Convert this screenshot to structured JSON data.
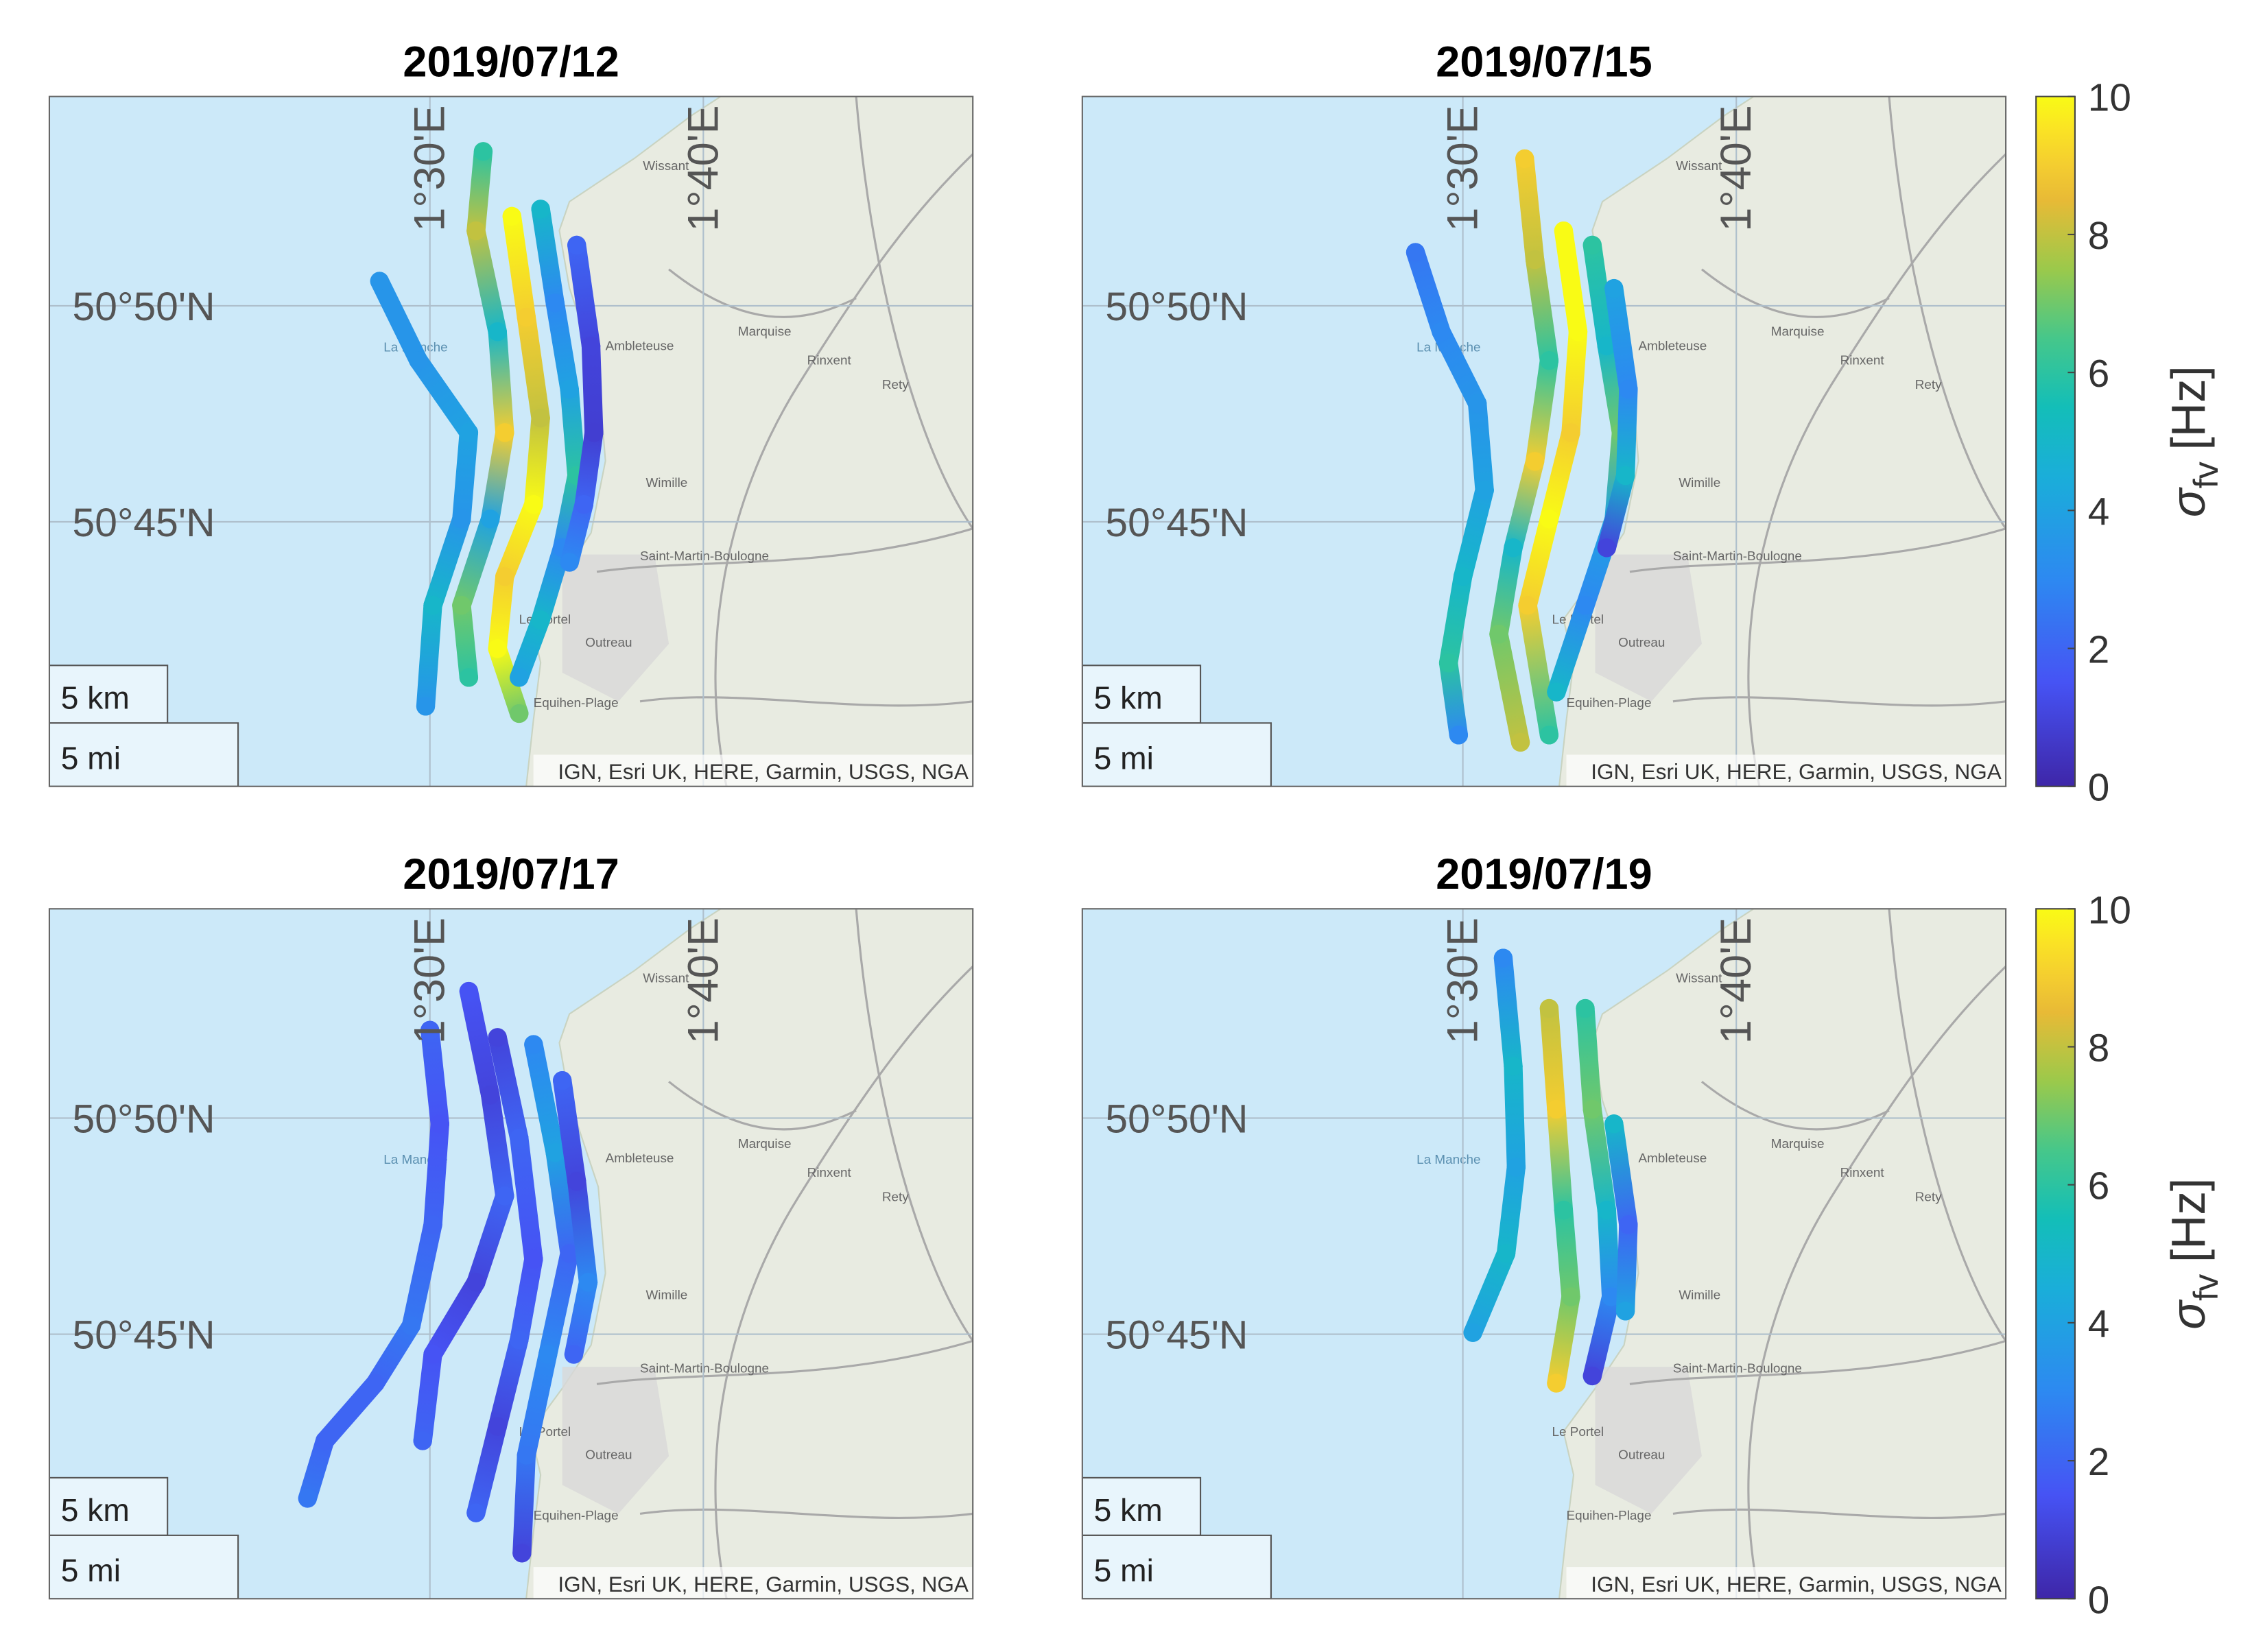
{
  "map": {
    "xlim": [
      1.268,
      1.831
    ],
    "ylim": [
      50.648,
      50.914
    ],
    "lon_ticks": [
      {
        "value": 1.5,
        "label": "1°30'E"
      },
      {
        "value": 1.6667,
        "label": "1°40'E"
      }
    ],
    "lat_ticks": [
      {
        "value": 50.8333,
        "label": "50°50'N"
      },
      {
        "value": 50.75,
        "label": "50°45'N"
      }
    ],
    "scale_bar": [
      "5 km",
      "5 mi"
    ],
    "attribution": "IGN, Esri UK, HERE, Garmin, USGS, NGA",
    "place_names": [
      "La Manche",
      "Wissant",
      "Ambleteuse",
      "Marquise",
      "Rinxent",
      "Rety",
      "Wimille",
      "Saint-Martin-Boulogne",
      "Outreau",
      "Equihen-Plage",
      "Le Portel"
    ]
  },
  "colorbar": {
    "clim": [
      0,
      10
    ],
    "ticks": [
      0,
      2,
      4,
      6,
      8,
      10
    ],
    "label": {
      "symbol": "σ",
      "subscript": "fv",
      "unit": "[Hz]"
    }
  },
  "panels": [
    {
      "title": "2019/07/12",
      "tracks": [
        {
          "lon": [
            1.4693,
            1.493,
            1.5237,
            1.5193,
            1.5018,
            1.4974
          ],
          "lat": [
            50.8428,
            50.8122,
            50.7844,
            50.7511,
            50.7178,
            50.6789
          ],
          "values": [
            3.5,
            3.5,
            4,
            3.5,
            5,
            3.5
          ]
        },
        {
          "lon": [
            1.5325,
            1.5281,
            1.5412,
            1.5456,
            1.5368,
            1.5193,
            1.5237
          ],
          "lat": [
            50.8928,
            50.8622,
            50.8233,
            50.7844,
            50.7511,
            50.7178,
            50.69
          ],
          "values": [
            6,
            8,
            5,
            9,
            4,
            7,
            6
          ]
        },
        {
          "lon": [
            1.55,
            1.5588,
            1.5675,
            1.5632,
            1.5456,
            1.5412,
            1.5544
          ],
          "lat": [
            50.8678,
            50.8289,
            50.79,
            50.7567,
            50.7289,
            50.7011,
            50.6761
          ],
          "values": [
            10,
            9,
            8,
            10,
            9,
            10,
            7
          ]
        },
        {
          "lon": [
            1.5675,
            1.5763,
            1.5851,
            1.5895,
            1.5807,
            1.5675,
            1.5544
          ],
          "lat": [
            50.8706,
            50.8344,
            50.8011,
            50.7678,
            50.74,
            50.7122,
            50.69
          ],
          "values": [
            5,
            3,
            4,
            6,
            3,
            5,
            4
          ]
        },
        {
          "lon": [
            1.5895,
            1.5982,
            1.6,
            1.5939,
            1.5851
          ],
          "lat": [
            50.8567,
            50.8178,
            50.7844,
            50.7567,
            50.7344
          ],
          "values": [
            2,
            1,
            0.8,
            2,
            3
          ]
        }
      ]
    },
    {
      "title": "2019/07/15",
      "tracks": [
        {
          "lon": [
            1.4711,
            1.4868,
            1.5088,
            1.5132,
            1.5,
            1.4912,
            1.4974
          ],
          "lat": [
            50.8539,
            50.8233,
            50.7956,
            50.7622,
            50.7289,
            50.6956,
            50.6678
          ],
          "values": [
            2.5,
            3,
            3.5,
            4,
            5,
            6,
            3
          ]
        },
        {
          "lon": [
            1.5377,
            1.5439,
            1.5526,
            1.5439,
            1.5307,
            1.5219,
            1.5351
          ],
          "lat": [
            50.89,
            50.8511,
            50.8122,
            50.7733,
            50.74,
            50.7067,
            50.665
          ],
          "values": [
            9,
            8,
            6,
            9,
            5,
            7,
            8
          ]
        },
        {
          "lon": [
            1.5614,
            1.5702,
            1.5658,
            1.5526,
            1.5395,
            1.5526
          ],
          "lat": [
            50.8622,
            50.8233,
            50.7844,
            50.7511,
            50.7178,
            50.6678
          ],
          "values": [
            10,
            10,
            9,
            10,
            9,
            6
          ]
        },
        {
          "lon": [
            1.5789,
            1.5877,
            1.5965,
            1.5921,
            1.5746,
            1.557
          ],
          "lat": [
            50.8567,
            50.8178,
            50.7844,
            50.7511,
            50.7178,
            50.6844
          ],
          "values": [
            6,
            5,
            7,
            4,
            3,
            5
          ]
        },
        {
          "lon": [
            1.5921,
            1.6009,
            1.5991,
            1.5877
          ],
          "lat": [
            50.84,
            50.8011,
            50.7678,
            50.74
          ],
          "values": [
            4,
            3,
            5,
            1
          ]
        }
      ]
    },
    {
      "title": "2019/07/17",
      "tracks": [
        {
          "lon": [
            1.5,
            1.5061,
            1.5018,
            1.4886,
            1.4667,
            1.436,
            1.4254
          ],
          "lat": [
            50.8672,
            50.8311,
            50.7922,
            50.7533,
            50.7311,
            50.7089,
            50.6867
          ],
          "values": [
            2,
            1.5,
            2,
            2.5,
            2,
            2,
            2.5
          ]
        },
        {
          "lon": [
            1.5237,
            1.5368,
            1.5456,
            1.5281,
            1.5018,
            1.4956
          ],
          "lat": [
            50.8822,
            50.8422,
            50.8033,
            50.77,
            50.7422,
            50.7089
          ],
          "values": [
            1.5,
            1,
            2,
            1,
            1.5,
            2
          ]
        },
        {
          "lon": [
            1.5412,
            1.5544,
            1.5632,
            1.5544,
            1.5412,
            1.5281
          ],
          "lat": [
            50.8644,
            50.8256,
            50.7789,
            50.7478,
            50.7144,
            50.6811
          ],
          "values": [
            1,
            2,
            1.5,
            2,
            1,
            2
          ]
        },
        {
          "lon": [
            1.5632,
            1.5763,
            1.5851,
            1.5719,
            1.5588,
            1.5561
          ],
          "lat": [
            50.8617,
            50.82,
            50.7811,
            50.7422,
            50.7033,
            50.6656
          ],
          "values": [
            3,
            4,
            2,
            3,
            2.5,
            1
          ]
        },
        {
          "lon": [
            1.5807,
            1.5895,
            1.5965,
            1.5877
          ],
          "lat": [
            50.8478,
            50.8089,
            50.77,
            50.7422
          ],
          "values": [
            2,
            1,
            3,
            2
          ]
        }
      ]
    },
    {
      "title": "2019/07/19",
      "tracks": [
        {
          "lon": [
            1.5246,
            1.5307,
            1.5325,
            1.5263,
            1.5061
          ],
          "lat": [
            50.895,
            50.8533,
            50.8144,
            50.7811,
            50.7506
          ],
          "values": [
            3,
            5,
            4,
            5,
            4
          ]
        },
        {
          "lon": [
            1.5526,
            1.557,
            1.5614,
            1.5658,
            1.557
          ],
          "lat": [
            50.8756,
            50.8367,
            50.7978,
            50.7644,
            50.7311
          ],
          "values": [
            8,
            9,
            6,
            7,
            9
          ]
        },
        {
          "lon": [
            1.5746,
            1.5789,
            1.5877,
            1.5904,
            1.5789
          ],
          "lat": [
            50.8756,
            50.8367,
            50.7978,
            50.7644,
            50.7339
          ],
          "values": [
            6,
            7,
            5,
            3,
            1
          ]
        },
        {
          "lon": [
            1.5921,
            1.6009,
            1.5991
          ],
          "lat": [
            50.8311,
            50.7922,
            50.7589
          ],
          "values": [
            5,
            2,
            4
          ]
        }
      ]
    }
  ]
}
